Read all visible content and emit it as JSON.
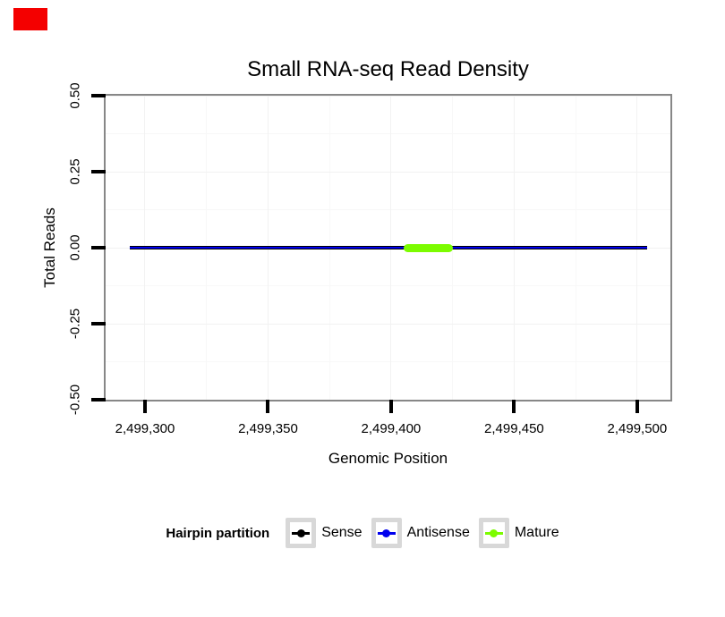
{
  "window": {
    "background": "#FFFFFF"
  },
  "annotation_box": {
    "color": "#F40000"
  },
  "chart_data": {
    "type": "line",
    "title": "Small RNA-seq Read Density",
    "xlabel": "Genomic Position",
    "ylabel": "Total Reads",
    "xlim": [
      2499284,
      2499513.5
    ],
    "ylim": [
      -0.5,
      0.5
    ],
    "x_ticks": [
      {
        "value": 2499300,
        "label": "2,499,300"
      },
      {
        "value": 2499350,
        "label": "2,499,350"
      },
      {
        "value": 2499400,
        "label": "2,499,400"
      },
      {
        "value": 2499450,
        "label": "2,499,450"
      },
      {
        "value": 2499500,
        "label": "2,499,500"
      }
    ],
    "y_ticks": [
      {
        "value": 0.5,
        "label": "0.50"
      },
      {
        "value": 0.25,
        "label": "0.25"
      },
      {
        "value": 0.0,
        "label": "0.00"
      },
      {
        "value": -0.25,
        "label": "-0.25"
      },
      {
        "value": -0.5,
        "label": "-0.50"
      }
    ],
    "x_minor": [
      2499325,
      2499375,
      2499425,
      2499475
    ],
    "y_minor": [
      0.375,
      0.125,
      -0.125,
      -0.375
    ],
    "grid": true,
    "panel_border_color": "#878787",
    "grid_major_color": "#F2F2F2",
    "grid_minor_color": "#F8F8F8",
    "series": [
      {
        "name": "Sense",
        "color": "#000000",
        "y": 0,
        "x_start": 2499294,
        "x_end": 2499504,
        "linewidth": 4
      },
      {
        "name": "Antisense",
        "color": "#0000EE",
        "y": 0,
        "x_start": 2499294,
        "x_end": 2499504,
        "linewidth": 2
      },
      {
        "name": "Mature",
        "color": "#7CFC00",
        "y": 0,
        "x_start": 2499405,
        "x_end": 2499425,
        "linewidth": 9
      }
    ],
    "legend": {
      "title": "Hairpin partition",
      "position": "bottom",
      "entries": [
        {
          "label": "Sense",
          "color": "#000000"
        },
        {
          "label": "Antisense",
          "color": "#0000EE"
        },
        {
          "label": "Mature",
          "color": "#7CFC00"
        }
      ]
    }
  }
}
